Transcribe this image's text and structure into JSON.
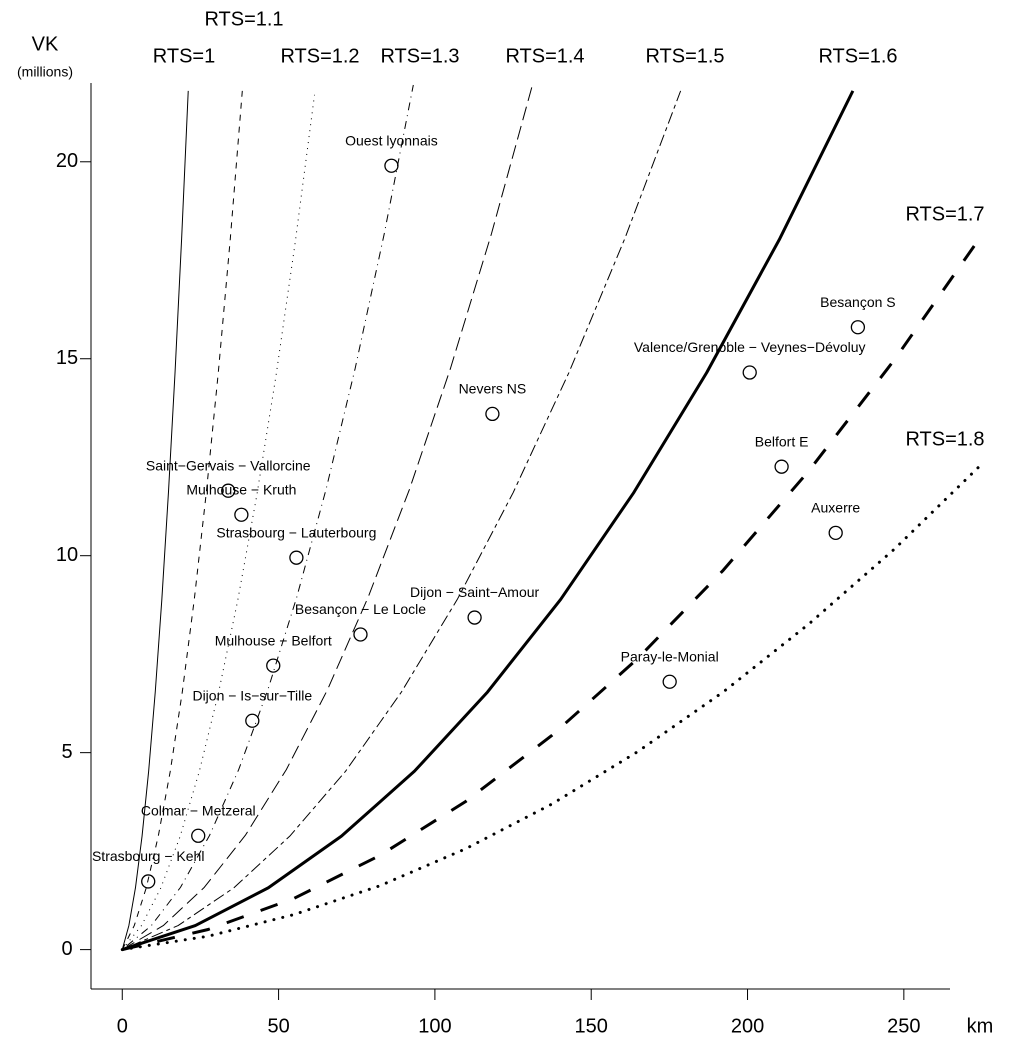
{
  "chart_data": {
    "type": "scatter",
    "y_label": "VK",
    "y_label_sub": "(millions)",
    "x_label": "km",
    "color": "#000000",
    "xlim": [
      -10,
      275
    ],
    "ylim": [
      -1,
      22
    ],
    "xticks": [
      0,
      50,
      100,
      150,
      200,
      250
    ],
    "yticks": [
      0,
      5,
      10,
      15,
      20
    ],
    "points": {
      "labels": [
        "Ouest lyonnais",
        "Besançon S",
        "Valence/Grenoble − Veynes−Dévoluy",
        "Nevers NS",
        "Belfort E",
        "Saint−Gervais − Vallorcine",
        "Mulhouse − Kruth",
        "Auxerre",
        "Strasbourg − Lauterbourg",
        "Dijon − Saint−Amour",
        "Besançon − Le Locle",
        "Mulhouse − Belfort",
        "Paray-le-Monial",
        "Dijon − Is−sur−Tille",
        "Colmar − Metzeral",
        "Strasbourg − Kehl"
      ],
      "x": [
        86.1,
        235.3,
        200.7,
        118.4,
        210.9,
        33.9,
        38.1,
        228.2,
        55.7,
        112.7,
        76.2,
        48.3,
        175.1,
        41.6,
        24.3,
        8.3
      ],
      "values": [
        19.9,
        15.8,
        14.65,
        13.6,
        12.26,
        11.65,
        11.04,
        10.58,
        9.95,
        8.43,
        8.0,
        7.21,
        6.8,
        5.81,
        2.89,
        1.73
      ]
    },
    "series": [
      {
        "name": "RTS=1",
        "line_style": "solid",
        "line_width": 1,
        "x": [
          0,
          2.11,
          4.22,
          6.33,
          8.44,
          10.55,
          12.66,
          14.77,
          16.88,
          18.99,
          21.1
        ],
        "values": [
          0,
          0.61,
          1.57,
          2.88,
          4.53,
          6.54,
          8.89,
          11.6,
          14.65,
          18.05,
          21.8
        ]
      },
      {
        "name": "RTS=1.1",
        "line_style": "dashed",
        "line_width": 1,
        "x": [
          0,
          3.84,
          7.68,
          11.52,
          15.36,
          19.2,
          23.04,
          26.88,
          30.72,
          34.56,
          38.4
        ],
        "values": [
          0,
          0.61,
          1.57,
          2.88,
          4.53,
          6.54,
          8.89,
          11.6,
          14.65,
          18.05,
          21.8
        ]
      },
      {
        "name": "RTS=1.2",
        "line_style": "dotted",
        "line_width": 1,
        "x": [
          0,
          6.15,
          12.3,
          18.45,
          24.6,
          30.75,
          36.9,
          43.05,
          49.2,
          55.35,
          61.5
        ],
        "values": [
          0,
          0.61,
          1.56,
          2.86,
          4.51,
          6.51,
          8.85,
          11.54,
          14.58,
          17.97,
          21.7
        ]
      },
      {
        "name": "RTS=1.3",
        "line_style": "dotdash",
        "line_width": 1,
        "x": [
          0,
          9.31,
          18.62,
          27.93,
          37.24,
          46.55,
          55.86,
          65.17,
          74.48,
          83.79,
          93.1
        ],
        "values": [
          0,
          0.61,
          1.58,
          2.9,
          4.57,
          6.59,
          8.96,
          11.68,
          14.75,
          18.17,
          21.95
        ]
      },
      {
        "name": "RTS=1.4",
        "line_style": "longdash",
        "line_width": 1,
        "x": [
          0,
          13.12,
          26.24,
          39.36,
          52.48,
          65.6,
          78.72,
          91.84,
          104.96,
          118.08,
          131.2
        ],
        "values": [
          0,
          0.61,
          1.58,
          2.9,
          4.57,
          6.59,
          8.96,
          11.68,
          14.75,
          18.17,
          21.95
        ]
      },
      {
        "name": "RTS=1.5",
        "line_style": "twodash",
        "line_width": 1,
        "x": [
          0,
          17.86,
          35.72,
          53.58,
          71.44,
          89.3,
          107.16,
          125.02,
          142.88,
          160.74,
          178.6
        ],
        "values": [
          0,
          0.61,
          1.57,
          2.88,
          4.53,
          6.54,
          8.89,
          11.6,
          14.65,
          18.05,
          21.8
        ]
      },
      {
        "name": "RTS=1.6",
        "line_style": "solid",
        "line_width": 3,
        "x": [
          0,
          23.37,
          46.74,
          70.11,
          93.48,
          116.85,
          140.22,
          163.59,
          186.96,
          210.33,
          233.7
        ],
        "values": [
          0,
          0.61,
          1.57,
          2.88,
          4.53,
          6.54,
          8.89,
          11.6,
          14.65,
          18.05,
          21.8
        ]
      },
      {
        "name": "RTS=1.7",
        "line_style": "dashed",
        "line_width": 3,
        "x": [
          0,
          27.46,
          54.92,
          82.38,
          109.84,
          137.3,
          164.76,
          192.22,
          219.68,
          247.14,
          274.6
        ],
        "values": [
          0,
          0.51,
          1.3,
          2.39,
          3.76,
          5.43,
          7.38,
          9.63,
          12.16,
          14.99,
          18.1
        ]
      },
      {
        "name": "RTS=1.8",
        "line_style": "dotted",
        "line_width": 3,
        "x": [
          0,
          27.46,
          54.92,
          82.38,
          109.84,
          137.3,
          164.76,
          192.22,
          219.68,
          247.14,
          274.6
        ],
        "values": [
          0,
          0.34,
          0.89,
          1.62,
          2.56,
          3.69,
          5.02,
          6.54,
          8.27,
          10.18,
          12.3
        ]
      }
    ]
  }
}
